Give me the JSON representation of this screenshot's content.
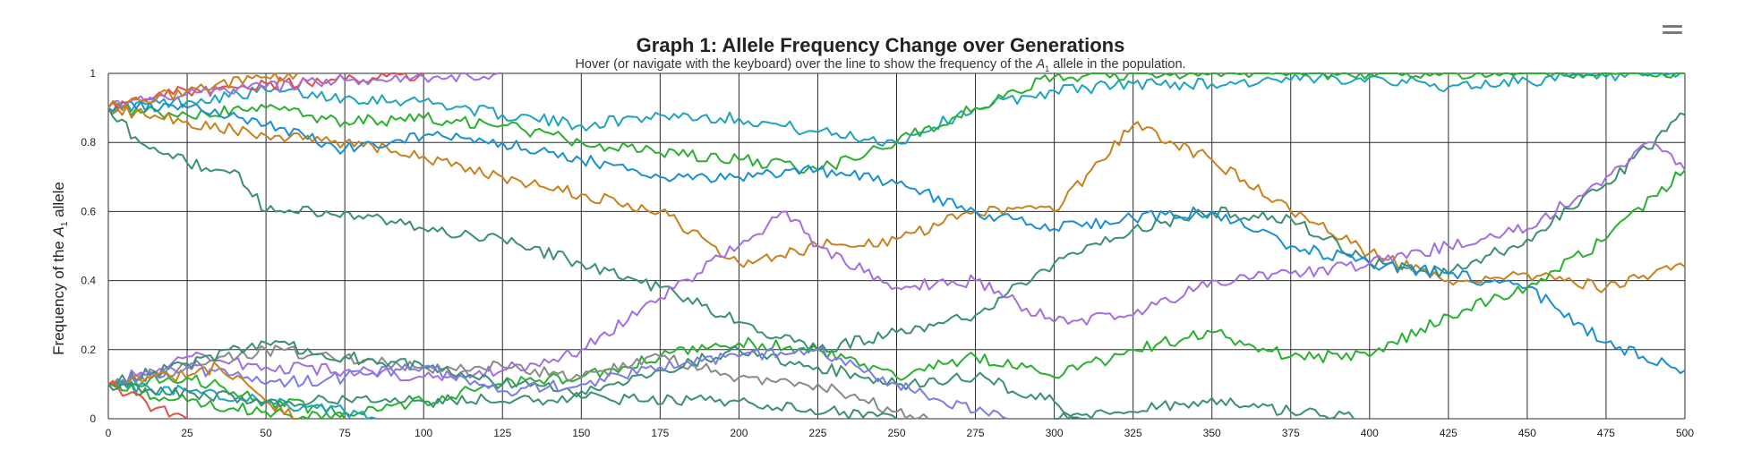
{
  "chart_data": {
    "type": "line",
    "title": "Graph 1: Allele Frequency Change over Generations",
    "subtitle_before": "Hover (or navigate with the keyboard) over the line to show the frequency of the ",
    "subtitle_allele": "A",
    "subtitle_allele_sub": "1",
    "subtitle_after": " allele in the population.",
    "ylabel_before": "Frequency of the ",
    "ylabel_allele": "A",
    "ylabel_allele_sub": "1",
    "ylabel_after": " allele",
    "xlim": [
      0,
      500
    ],
    "ylim": [
      0,
      1
    ],
    "xticks": [
      0,
      25,
      50,
      75,
      100,
      125,
      150,
      175,
      200,
      225,
      250,
      275,
      300,
      325,
      350,
      375,
      400,
      425,
      450,
      475,
      500
    ],
    "yticks": [
      0,
      0.2,
      0.4,
      0.6,
      0.8,
      1
    ],
    "ytick_labels": [
      "0",
      "0.2",
      "0.4",
      "0.6",
      "0.8",
      "1"
    ],
    "grid": true,
    "legend": false,
    "series": [
      {
        "color": "#1fa3bf",
        "points": [
          [
            0,
            0.9
          ],
          [
            25,
            0.92
          ],
          [
            50,
            0.95
          ],
          [
            75,
            0.93
          ],
          [
            100,
            0.92
          ],
          [
            125,
            0.88
          ],
          [
            150,
            0.85
          ],
          [
            175,
            0.88
          ],
          [
            200,
            0.87
          ],
          [
            225,
            0.83
          ],
          [
            250,
            0.8
          ],
          [
            275,
            0.9
          ],
          [
            300,
            0.95
          ],
          [
            325,
            0.97
          ],
          [
            350,
            0.97
          ],
          [
            375,
            0.98
          ],
          [
            400,
            0.99
          ],
          [
            425,
            0.96
          ],
          [
            450,
            0.98
          ],
          [
            475,
            0.99
          ],
          [
            500,
            1.0
          ]
        ]
      },
      {
        "color": "#2ab02f",
        "points": [
          [
            0,
            0.9
          ],
          [
            25,
            0.88
          ],
          [
            50,
            0.9
          ],
          [
            75,
            0.86
          ],
          [
            100,
            0.87
          ],
          [
            125,
            0.85
          ],
          [
            150,
            0.8
          ],
          [
            175,
            0.77
          ],
          [
            200,
            0.75
          ],
          [
            225,
            0.72
          ],
          [
            250,
            0.8
          ],
          [
            275,
            0.9
          ],
          [
            300,
            0.99
          ],
          [
            325,
            1.0
          ],
          [
            350,
            1.0
          ],
          [
            375,
            1.0
          ],
          [
            400,
            1.0
          ],
          [
            425,
            1.0
          ],
          [
            450,
            1.0
          ],
          [
            475,
            1.0
          ],
          [
            500,
            1.0
          ]
        ]
      },
      {
        "color": "#c9811e",
        "points": [
          [
            0,
            0.9
          ],
          [
            25,
            0.86
          ],
          [
            50,
            0.82
          ],
          [
            75,
            0.8
          ],
          [
            100,
            0.76
          ],
          [
            125,
            0.7
          ],
          [
            150,
            0.65
          ],
          [
            175,
            0.6
          ],
          [
            200,
            0.45
          ],
          [
            225,
            0.5
          ],
          [
            250,
            0.52
          ],
          [
            275,
            0.6
          ],
          [
            300,
            0.6
          ],
          [
            325,
            0.85
          ],
          [
            350,
            0.75
          ],
          [
            375,
            0.6
          ],
          [
            400,
            0.48
          ],
          [
            425,
            0.4
          ],
          [
            450,
            0.42
          ],
          [
            475,
            0.38
          ],
          [
            500,
            0.44
          ]
        ]
      },
      {
        "color": "#3a9070",
        "points": [
          [
            0,
            0.9
          ],
          [
            10,
            0.8
          ],
          [
            25,
            0.74
          ],
          [
            40,
            0.72
          ],
          [
            50,
            0.6
          ],
          [
            75,
            0.6
          ],
          [
            100,
            0.55
          ],
          [
            125,
            0.52
          ],
          [
            150,
            0.45
          ],
          [
            175,
            0.38
          ],
          [
            200,
            0.28
          ],
          [
            225,
            0.2
          ],
          [
            250,
            0.25
          ],
          [
            275,
            0.3
          ],
          [
            300,
            0.45
          ],
          [
            325,
            0.55
          ],
          [
            350,
            0.6
          ],
          [
            375,
            0.58
          ],
          [
            400,
            0.45
          ],
          [
            425,
            0.42
          ],
          [
            450,
            0.52
          ],
          [
            475,
            0.68
          ],
          [
            500,
            0.88
          ]
        ]
      },
      {
        "color": "#1b8fd0",
        "points": [
          [
            0,
            0.9
          ],
          [
            25,
            0.9
          ],
          [
            50,
            0.85
          ],
          [
            75,
            0.78
          ],
          [
            100,
            0.82
          ],
          [
            125,
            0.8
          ],
          [
            150,
            0.75
          ],
          [
            175,
            0.7
          ],
          [
            200,
            0.7
          ],
          [
            225,
            0.72
          ],
          [
            250,
            0.68
          ],
          [
            275,
            0.6
          ],
          [
            300,
            0.55
          ],
          [
            325,
            0.58
          ],
          [
            350,
            0.6
          ],
          [
            375,
            0.5
          ],
          [
            400,
            0.45
          ],
          [
            425,
            0.42
          ],
          [
            450,
            0.38
          ],
          [
            475,
            0.22
          ],
          [
            500,
            0.14
          ]
        ]
      },
      {
        "color": "#a46ee0",
        "points": [
          [
            0,
            0.1
          ],
          [
            25,
            0.18
          ],
          [
            50,
            0.15
          ],
          [
            75,
            0.14
          ],
          [
            100,
            0.12
          ],
          [
            125,
            0.14
          ],
          [
            150,
            0.2
          ],
          [
            175,
            0.35
          ],
          [
            200,
            0.5
          ],
          [
            215,
            0.6
          ],
          [
            225,
            0.5
          ],
          [
            250,
            0.38
          ],
          [
            275,
            0.4
          ],
          [
            300,
            0.28
          ],
          [
            325,
            0.3
          ],
          [
            350,
            0.4
          ],
          [
            375,
            0.42
          ],
          [
            400,
            0.45
          ],
          [
            425,
            0.5
          ],
          [
            450,
            0.55
          ],
          [
            475,
            0.7
          ],
          [
            490,
            0.8
          ],
          [
            500,
            0.72
          ]
        ]
      },
      {
        "color": "#2ab02f",
        "points": [
          [
            0,
            0.1
          ],
          [
            25,
            0.12
          ],
          [
            50,
            0.05
          ],
          [
            75,
            0.02
          ],
          [
            100,
            0.05
          ],
          [
            125,
            0.1
          ],
          [
            150,
            0.12
          ],
          [
            175,
            0.18
          ],
          [
            200,
            0.22
          ],
          [
            225,
            0.2
          ],
          [
            250,
            0.12
          ],
          [
            275,
            0.18
          ],
          [
            300,
            0.12
          ],
          [
            325,
            0.2
          ],
          [
            350,
            0.25
          ],
          [
            375,
            0.18
          ],
          [
            400,
            0.18
          ],
          [
            425,
            0.3
          ],
          [
            450,
            0.38
          ],
          [
            475,
            0.52
          ],
          [
            500,
            0.72
          ]
        ]
      },
      {
        "color": "#8a8a8a",
        "points": [
          [
            0,
            0.1
          ],
          [
            25,
            0.15
          ],
          [
            50,
            0.2
          ],
          [
            75,
            0.18
          ],
          [
            100,
            0.15
          ],
          [
            125,
            0.15
          ],
          [
            150,
            0.12
          ],
          [
            175,
            0.18
          ],
          [
            200,
            0.12
          ],
          [
            225,
            0.1
          ],
          [
            250,
            0.02
          ],
          [
            260,
            0.0
          ]
        ]
      },
      {
        "color": "#3a9070",
        "points": [
          [
            0,
            0.1
          ],
          [
            25,
            0.16
          ],
          [
            50,
            0.22
          ],
          [
            75,
            0.18
          ],
          [
            100,
            0.15
          ],
          [
            125,
            0.1
          ],
          [
            150,
            0.08
          ],
          [
            175,
            0.14
          ],
          [
            200,
            0.2
          ],
          [
            225,
            0.15
          ],
          [
            250,
            0.1
          ],
          [
            275,
            0.12
          ],
          [
            300,
            0.05
          ],
          [
            310,
            0.0
          ]
        ]
      },
      {
        "color": "#7c7ce6",
        "points": [
          [
            0,
            0.1
          ],
          [
            25,
            0.15
          ],
          [
            50,
            0.1
          ],
          [
            75,
            0.12
          ],
          [
            100,
            0.15
          ],
          [
            125,
            0.08
          ],
          [
            150,
            0.1
          ],
          [
            175,
            0.15
          ],
          [
            200,
            0.18
          ],
          [
            225,
            0.2
          ],
          [
            250,
            0.1
          ],
          [
            275,
            0.02
          ],
          [
            285,
            0.0
          ]
        ]
      },
      {
        "color": "#2ab02f",
        "points": [
          [
            0,
            0.1
          ],
          [
            25,
            0.05
          ],
          [
            50,
            0.02
          ],
          [
            75,
            0.0
          ]
        ]
      },
      {
        "color": "#1fa3bf",
        "points": [
          [
            0,
            0.1
          ],
          [
            25,
            0.08
          ],
          [
            50,
            0.05
          ],
          [
            75,
            0.02
          ],
          [
            85,
            0.0
          ]
        ]
      },
      {
        "color": "#c9811e",
        "points": [
          [
            0,
            0.1
          ],
          [
            20,
            0.12
          ],
          [
            35,
            0.15
          ],
          [
            50,
            0.05
          ],
          [
            60,
            0.0
          ]
        ]
      },
      {
        "color": "#e0504a",
        "points": [
          [
            0,
            0.1
          ],
          [
            15,
            0.03
          ],
          [
            25,
            0.0
          ]
        ]
      },
      {
        "color": "#e0504a",
        "points": [
          [
            0,
            0.9
          ],
          [
            25,
            0.95
          ],
          [
            50,
            0.97
          ],
          [
            75,
            0.98
          ],
          [
            100,
            1.0
          ]
        ]
      },
      {
        "color": "#a46ee0",
        "points": [
          [
            0,
            0.9
          ],
          [
            25,
            0.94
          ],
          [
            50,
            0.96
          ],
          [
            75,
            0.98
          ],
          [
            100,
            0.99
          ],
          [
            125,
            1.0
          ]
        ]
      },
      {
        "color": "#c9811e",
        "points": [
          [
            0,
            0.9
          ],
          [
            25,
            0.95
          ],
          [
            50,
            0.99
          ],
          [
            60,
            1.0
          ]
        ]
      },
      {
        "color": "#3a9070",
        "points": [
          [
            0,
            0.1
          ],
          [
            50,
            0.05
          ],
          [
            100,
            0.05
          ],
          [
            150,
            0.06
          ],
          [
            200,
            0.05
          ],
          [
            250,
            0.0
          ]
        ]
      },
      {
        "color": "#3a9070",
        "points": [
          [
            300,
            0.0
          ],
          [
            325,
            0.02
          ],
          [
            350,
            0.06
          ],
          [
            375,
            0.02
          ],
          [
            395,
            0.0
          ]
        ]
      }
    ]
  }
}
